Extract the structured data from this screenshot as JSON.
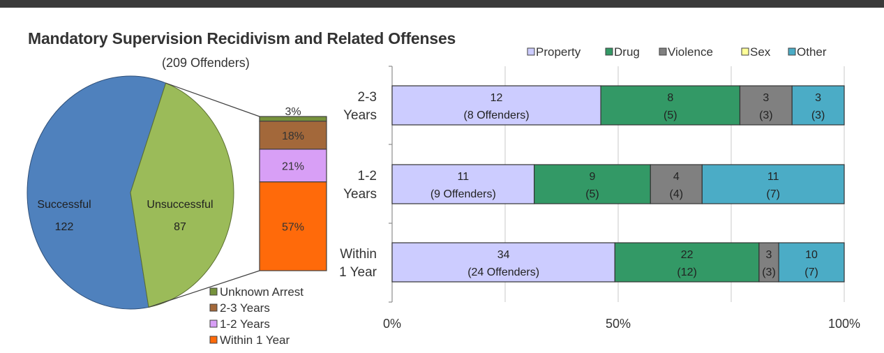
{
  "chart_data": [
    {
      "type": "pie",
      "title": "Mandatory Supervision Recidivism and Related Offenses",
      "subtitle": "(209 Offenders)",
      "slices": [
        {
          "label": "Successful",
          "value": 122,
          "color": "#4f81bd"
        },
        {
          "label": "Unsuccessful",
          "value": 87,
          "color": "#9bbb59"
        }
      ]
    },
    {
      "type": "bar",
      "stacked": true,
      "percent_labels": [
        "3%",
        "18%",
        "21%",
        "57%"
      ],
      "series": [
        {
          "name": "Unknown Arrest",
          "value": 3,
          "label": "3%",
          "color": "#76923c"
        },
        {
          "name": "2-3 Years",
          "value": 18,
          "label": "18%",
          "color": "#a3683a"
        },
        {
          "name": "1-2 Years",
          "value": 21,
          "label": "21%",
          "color": "#d89ff6"
        },
        {
          "name": "Within 1 Year",
          "value": 57,
          "label": "57%",
          "color": "#ff6a0a"
        }
      ],
      "legend": [
        "Unknown Arrest",
        "2-3 Years",
        "1-2 Years",
        "Within 1 Year"
      ]
    },
    {
      "type": "bar",
      "orientation": "horizontal",
      "stacked": "percent",
      "categories": [
        {
          "line1": "2-3",
          "line2": "Years"
        },
        {
          "line1": "1-2",
          "line2": "Years"
        },
        {
          "line1": "Within",
          "line2": "1 Year"
        }
      ],
      "legend": [
        {
          "name": "Property",
          "color": "#ccccff"
        },
        {
          "name": "Drug",
          "color": "#339966"
        },
        {
          "name": "Violence",
          "color": "#808080"
        },
        {
          "name": "Sex",
          "color": "#ffff99"
        },
        {
          "name": "Other",
          "color": "#4bacc6"
        }
      ],
      "rows": [
        {
          "segments": [
            {
              "series": "Property",
              "value": 12,
              "sub": "(8 Offenders)"
            },
            {
              "series": "Drug",
              "value": 8,
              "sub": "(5)"
            },
            {
              "series": "Violence",
              "value": 3,
              "sub": "(3)"
            },
            {
              "series": "Other",
              "value": 3,
              "sub": "(3)"
            }
          ]
        },
        {
          "segments": [
            {
              "series": "Property",
              "value": 11,
              "sub": "(9 Offenders)"
            },
            {
              "series": "Drug",
              "value": 9,
              "sub": "(5)"
            },
            {
              "series": "Violence",
              "value": 4,
              "sub": "(4)"
            },
            {
              "series": "Other",
              "value": 11,
              "sub": "(7)"
            }
          ]
        },
        {
          "segments": [
            {
              "series": "Property",
              "value": 34,
              "sub": "(24 Offenders)"
            },
            {
              "series": "Drug",
              "value": 22,
              "sub": "(12)"
            },
            {
              "series": "Violence",
              "value": 3,
              "sub": "(3)"
            },
            {
              "series": "Other",
              "value": 10,
              "sub": "(7)"
            }
          ]
        }
      ],
      "x_ticks": [
        "0%",
        "50%",
        "100%"
      ],
      "xlim": [
        0,
        100
      ],
      "grid": true
    }
  ]
}
